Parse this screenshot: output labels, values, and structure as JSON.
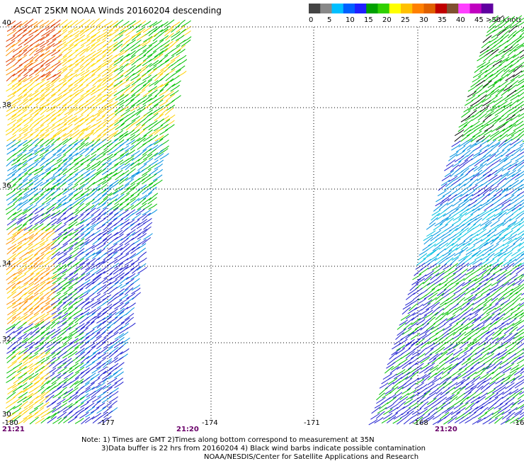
{
  "title": "ASCAT 25KM NOAA Winds 20160204 descending",
  "colorbar": {
    "labels": [
      "0",
      "5",
      "10",
      "15",
      "20",
      "25",
      "30",
      "35",
      "40",
      "45",
      ">50 knots"
    ],
    "colors": [
      "#444444",
      "#888888",
      "#00bfff",
      "#0060ff",
      "#2020ff",
      "#00a000",
      "#30d000",
      "#ffff00",
      "#ffc000",
      "#ff8000",
      "#e06000",
      "#c00000",
      "#805030",
      "#ff40ff",
      "#c000c0",
      "#6000a0"
    ]
  },
  "lon_labels": [
    "-180",
    "-177",
    "-174",
    "-171",
    "-168",
    "-16"
  ],
  "lat_labels": [
    "40",
    "38",
    "36",
    "34",
    "32",
    "30"
  ],
  "time_labels": [
    "21:21",
    "21:20",
    "21:20"
  ],
  "notes": {
    "line1": "Note: 1) Times are GMT 2)Times along bottom correspond to measurement at 35N",
    "line2": "3)Data buffer is 22 hrs from 20160204 4) Black wind barbs indicate possible contamination",
    "line3": "NOAA/NESDIS/Center for Satellite Applications and Research"
  },
  "colors": {
    "grid": "#000000",
    "swath_palette": [
      "#ffd000",
      "#ffe000",
      "#ff9000",
      "#e04000",
      "#00c000",
      "#30d030",
      "#0090e0",
      "#00c0e0",
      "#2020d0",
      "#000000"
    ]
  }
}
